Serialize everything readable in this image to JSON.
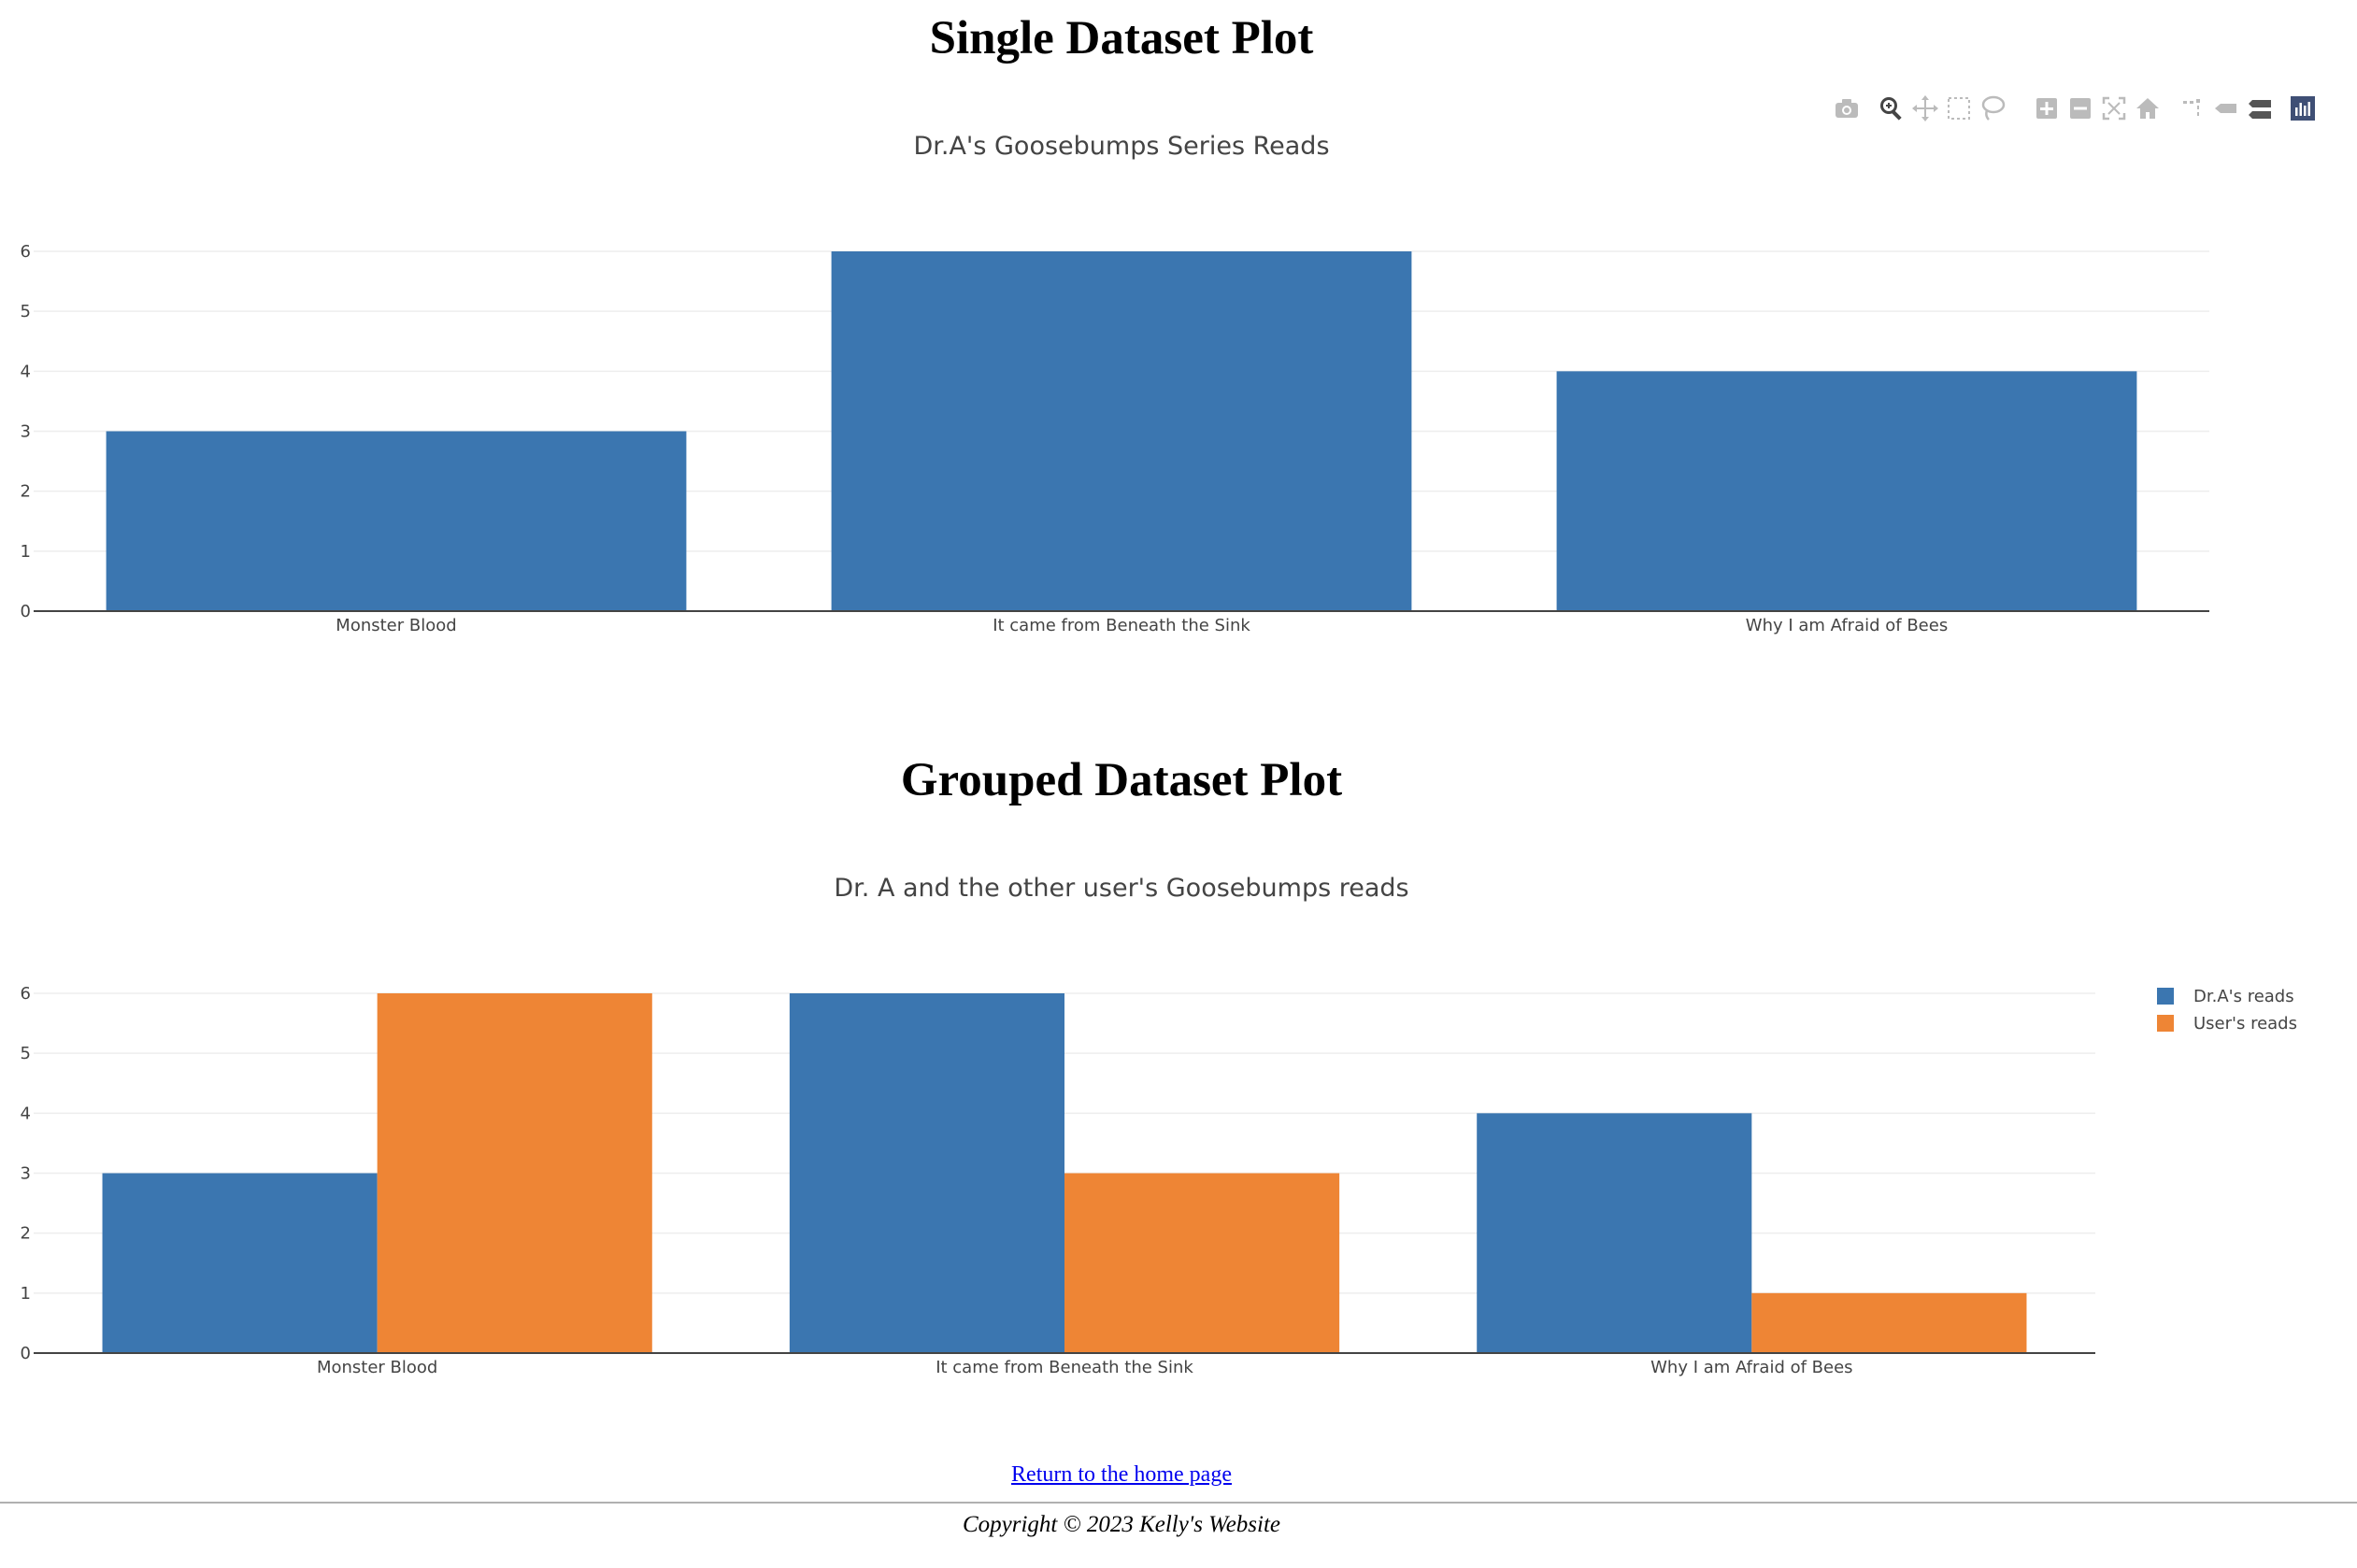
{
  "page": {
    "single_heading": "Single Dataset Plot",
    "grouped_heading": "Grouped Dataset Plot",
    "home_link": "Return to the home page",
    "copyright": "Copyright © 2023 Kelly's Website"
  },
  "modebar": {
    "buttons": [
      "camera-icon",
      "zoom-icon",
      "pan-icon",
      "box-select-icon",
      "lasso-select-icon",
      "zoom-in-icon",
      "zoom-out-icon",
      "autoscale-icon",
      "reset-axes-icon",
      "spike-lines-icon",
      "hover-closest-icon",
      "hover-compare-icon",
      "plotly-logo-icon"
    ]
  },
  "colors": {
    "series1": "#3b76b0",
    "series2": "#ee8535",
    "grid": "#eeeeee",
    "axis": "#444444"
  },
  "chart_data": [
    {
      "type": "bar",
      "title": "Dr.A's Goosebumps Series Reads",
      "categories": [
        "Monster Blood",
        "It came from Beneath the Sink",
        "Why I am Afraid of Bees"
      ],
      "series": [
        {
          "values": [
            3,
            6,
            4
          ]
        }
      ],
      "ylim": [
        0,
        6
      ],
      "yticks": [
        0,
        1,
        2,
        3,
        4,
        5,
        6
      ],
      "grid": true,
      "legend": "none"
    },
    {
      "type": "bar",
      "title": "Dr. A and the other user's Goosebumps reads",
      "categories": [
        "Monster Blood",
        "It came from Beneath the Sink",
        "Why I am Afraid of Bees"
      ],
      "series": [
        {
          "name": "Dr.A's reads",
          "values": [
            3,
            6,
            4
          ]
        },
        {
          "name": "User's reads",
          "values": [
            6,
            3,
            1
          ]
        }
      ],
      "ylim": [
        0,
        6
      ],
      "yticks": [
        0,
        1,
        2,
        3,
        4,
        5,
        6
      ],
      "grid": true,
      "legend": "top-right"
    }
  ]
}
